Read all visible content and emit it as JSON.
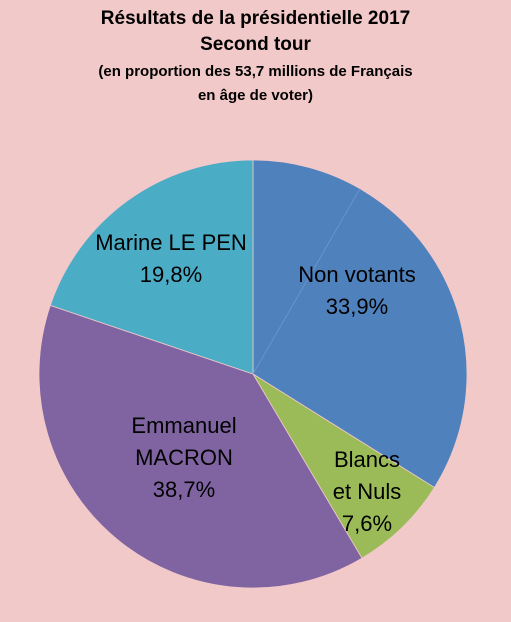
{
  "chart_data": {
    "type": "pie",
    "title": "Résultats de la présidentielle 2017",
    "subtitle": "Second tour",
    "note_lines": [
      "(en proportion des 53,7 millions de Français",
      "en âge de voter)"
    ],
    "slices": [
      {
        "label_lines": [
          "Non votants"
        ],
        "value_text": "33,9%",
        "value": 33.9,
        "color": "#4F81BD"
      },
      {
        "label_lines": [
          "Blancs",
          "et Nuls"
        ],
        "value_text": "7,6%",
        "value": 7.6,
        "color": "#9BBB59"
      },
      {
        "label_lines": [
          "Emmanuel",
          "MACRON"
        ],
        "value_text": "38,7%",
        "value": 38.7,
        "color": "#8064A2"
      },
      {
        "label_lines": [
          "Marine LE PEN"
        ],
        "value_text": "19,8%",
        "value": 19.8,
        "color": "#4BACC6"
      }
    ],
    "start_angle_deg": 0,
    "direction": "clockwise",
    "legend": "none"
  }
}
